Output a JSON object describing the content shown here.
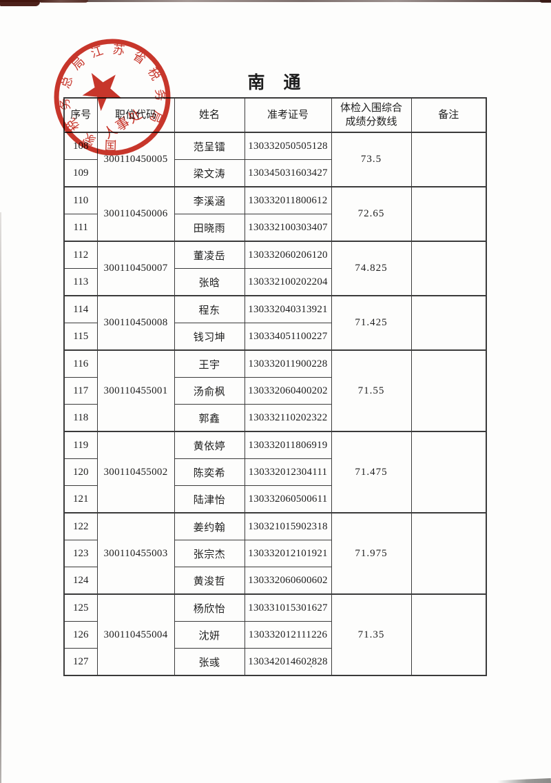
{
  "page": {
    "title": "南　通"
  },
  "stamp": {
    "arc_text": "国家税务总局江苏省税务局",
    "center_text": "人事处",
    "color": "#c52419"
  },
  "table": {
    "headers": [
      "序号",
      "职位代码",
      "姓名",
      "准考证号",
      "体检入围综合成绩分数线",
      "备注"
    ],
    "groups": [
      {
        "code": "300110450005",
        "score": "73.5",
        "remark": "",
        "members": [
          {
            "no": "108",
            "name": "范呈镭",
            "ticket": "130332050505128"
          },
          {
            "no": "109",
            "name": "梁文涛",
            "ticket": "130345031603427"
          }
        ]
      },
      {
        "code": "300110450006",
        "score": "72.65",
        "remark": "",
        "members": [
          {
            "no": "110",
            "name": "李溪涵",
            "ticket": "130332011800612"
          },
          {
            "no": "111",
            "name": "田晓雨",
            "ticket": "130332100303407"
          }
        ]
      },
      {
        "code": "300110450007",
        "score": "74.825",
        "remark": "",
        "members": [
          {
            "no": "112",
            "name": "董凌岳",
            "ticket": "130332060206120"
          },
          {
            "no": "113",
            "name": "张晗",
            "ticket": "130332100202204"
          }
        ]
      },
      {
        "code": "300110450008",
        "score": "71.425",
        "remark": "",
        "members": [
          {
            "no": "114",
            "name": "程东",
            "ticket": "130332040313921"
          },
          {
            "no": "115",
            "name": "钱习坤",
            "ticket": "130334051100227"
          }
        ]
      },
      {
        "code": "300110455001",
        "score": "71.55",
        "remark": "",
        "members": [
          {
            "no": "116",
            "name": "王宇",
            "ticket": "130332011900228"
          },
          {
            "no": "117",
            "name": "汤俞枫",
            "ticket": "130332060400202"
          },
          {
            "no": "118",
            "name": "郭鑫",
            "ticket": "130332110202322"
          }
        ]
      },
      {
        "code": "300110455002",
        "score": "71.475",
        "remark": "",
        "members": [
          {
            "no": "119",
            "name": "黄依婷",
            "ticket": "130332011806919"
          },
          {
            "no": "120",
            "name": "陈奕希",
            "ticket": "130332012304111"
          },
          {
            "no": "121",
            "name": "陆津怡",
            "ticket": "130332060500611"
          }
        ]
      },
      {
        "code": "300110455003",
        "score": "71.975",
        "remark": "",
        "members": [
          {
            "no": "122",
            "name": "姜约翰",
            "ticket": "130321015902318"
          },
          {
            "no": "123",
            "name": "张宗杰",
            "ticket": "130332012101921"
          },
          {
            "no": "124",
            "name": "黄浚哲",
            "ticket": "130332060600602"
          }
        ]
      },
      {
        "code": "300110455004",
        "score": "71.35",
        "remark": "",
        "members": [
          {
            "no": "125",
            "name": "杨欣怡",
            "ticket": "130331015301627"
          },
          {
            "no": "126",
            "name": "沈妍",
            "ticket": "130332012111226"
          },
          {
            "no": "127",
            "name": "张彧",
            "ticket": "130342014602828"
          }
        ]
      }
    ]
  }
}
